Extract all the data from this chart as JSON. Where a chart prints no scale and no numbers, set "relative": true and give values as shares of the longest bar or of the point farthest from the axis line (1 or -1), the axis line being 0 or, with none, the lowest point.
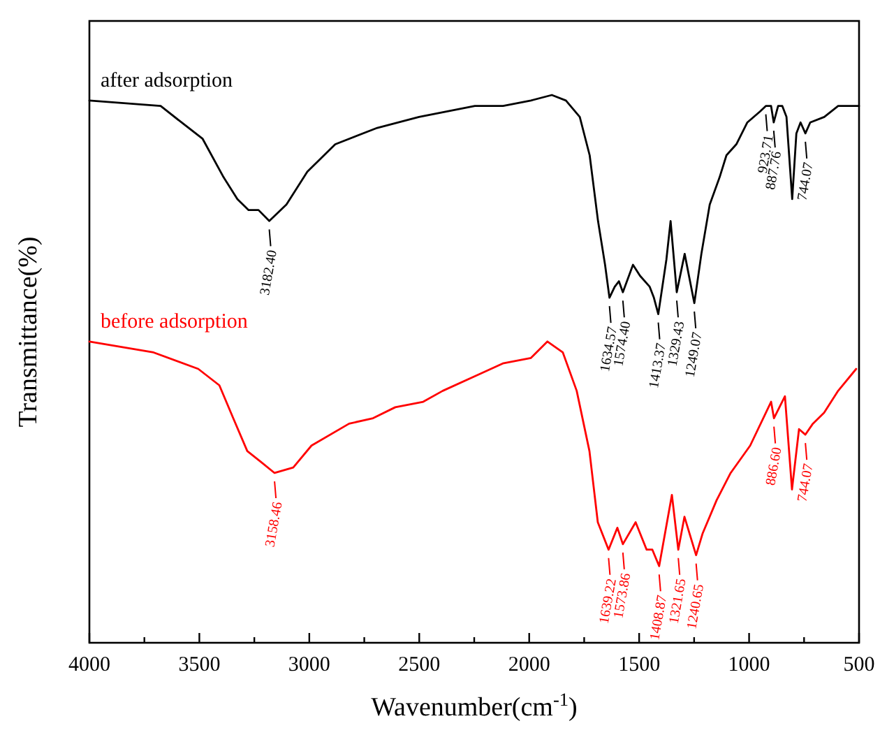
{
  "chart_data": {
    "type": "line",
    "relative": true,
    "xlabel": "Wavenumber(cm$^{-1}$)",
    "ylabel": "Transmittance(%)",
    "xlim": [
      4000,
      500
    ],
    "xticks": [
      4000,
      {
        "value": 3750,
        "label": null
      },
      3500,
      {
        "value": 3250,
        "label": null
      },
      3000,
      {
        "value": 2750,
        "label": null
      },
      2500,
      {
        "value": 2250,
        "label": null
      },
      2000,
      {
        "value": 1750,
        "label": null
      },
      1500,
      {
        "value": 1250,
        "label": null
      },
      1000,
      {
        "value": 750,
        "label": null
      },
      500
    ],
    "series": [
      {
        "name": "after adsorption",
        "color": "#000000",
        "x": [
          4000,
          3676,
          3581,
          3485,
          3390,
          3327,
          3276,
          3231,
          3182,
          3104,
          3009,
          2882,
          2691,
          2501,
          2247,
          2119,
          1992,
          1897,
          1833,
          1770,
          1725,
          1687,
          1655,
          1635,
          1611,
          1592,
          1574,
          1528,
          1496,
          1452,
          1433,
          1413,
          1376,
          1357,
          1329,
          1293,
          1249,
          1217,
          1179,
          1134,
          1103,
          1058,
          1008,
          950,
          924,
          919,
          900,
          888,
          868,
          849,
          830,
          804,
          785,
          766,
          744,
          722,
          658,
          595,
          544,
          500
        ],
        "values": [
          0.99,
          0.98,
          0.95,
          0.92,
          0.85,
          0.81,
          0.79,
          0.79,
          0.77,
          0.8,
          0.86,
          0.91,
          0.94,
          0.96,
          0.98,
          0.98,
          0.99,
          1,
          0.99,
          0.96,
          0.89,
          0.77,
          0.69,
          0.63,
          0.65,
          0.66,
          0.64,
          0.69,
          0.67,
          0.65,
          0.63,
          0.6,
          0.7,
          0.77,
          0.64,
          0.71,
          0.62,
          0.71,
          0.8,
          0.85,
          0.89,
          0.91,
          0.95,
          0.97,
          0.98,
          0.98,
          0.98,
          0.95,
          0.98,
          0.98,
          0.96,
          0.81,
          0.93,
          0.95,
          0.93,
          0.95,
          0.96,
          0.98,
          0.98,
          0.98
        ]
      },
      {
        "name": "before adsorption",
        "color": "#ff0000",
        "x": [
          4000,
          3708,
          3505,
          3409,
          3346,
          3282,
          3219,
          3158,
          3073,
          2990,
          2819,
          2710,
          2609,
          2482,
          2393,
          2228,
          2120,
          1992,
          1917,
          1847,
          1784,
          1726,
          1688,
          1639,
          1599,
          1574,
          1516,
          1466,
          1440,
          1409,
          1351,
          1322,
          1294,
          1241,
          1211,
          1148,
          1084,
          995,
          900,
          887,
          837,
          805,
          773,
          744,
          710,
          659,
          595,
          513
        ],
        "values": [
          0.55,
          0.53,
          0.5,
          0.47,
          0.41,
          0.35,
          0.33,
          0.31,
          0.32,
          0.36,
          0.4,
          0.41,
          0.43,
          0.44,
          0.46,
          0.49,
          0.51,
          0.52,
          0.55,
          0.53,
          0.46,
          0.35,
          0.22,
          0.17,
          0.21,
          0.18,
          0.22,
          0.17,
          0.17,
          0.14,
          0.27,
          0.17,
          0.23,
          0.16,
          0.2,
          0.26,
          0.31,
          0.36,
          0.44,
          0.41,
          0.45,
          0.28,
          0.39,
          0.38,
          0.4,
          0.42,
          0.46,
          0.5
        ]
      }
    ],
    "annotations": [
      {
        "text": "3182.40",
        "x": 3182,
        "y": 0.77
      },
      {
        "text": "1634.57",
        "x": 1635,
        "y": 0.63
      },
      {
        "text": "1574.40",
        "x": 1574,
        "y": 0.64
      },
      {
        "text": "1413.37",
        "x": 1413,
        "y": 0.6
      },
      {
        "text": "1329.43",
        "x": 1329,
        "y": 0.64
      },
      {
        "text": "1249.07",
        "x": 1249,
        "y": 0.62
      },
      {
        "text": "923.71",
        "x": 924,
        "y": 0.98
      },
      {
        "text": "887.76",
        "x": 888,
        "y": 0.95
      },
      {
        "text": "744.07",
        "x": 744,
        "y": 0.93
      },
      {
        "text": "3158.46",
        "x": 3158,
        "y": 0.31
      },
      {
        "text": "1639.22",
        "x": 1639,
        "y": 0.17
      },
      {
        "text": "1573.86",
        "x": 1574,
        "y": 0.18
      },
      {
        "text": "1408.87",
        "x": 1409,
        "y": 0.14
      },
      {
        "text": "1321.65",
        "x": 1322,
        "y": 0.17
      },
      {
        "text": "1240.65",
        "x": 1241,
        "y": 0.16
      },
      {
        "text": "886.60",
        "x": 887,
        "y": 0.41
      },
      {
        "text": "744.07",
        "x": 744,
        "y": 0.38
      }
    ]
  }
}
